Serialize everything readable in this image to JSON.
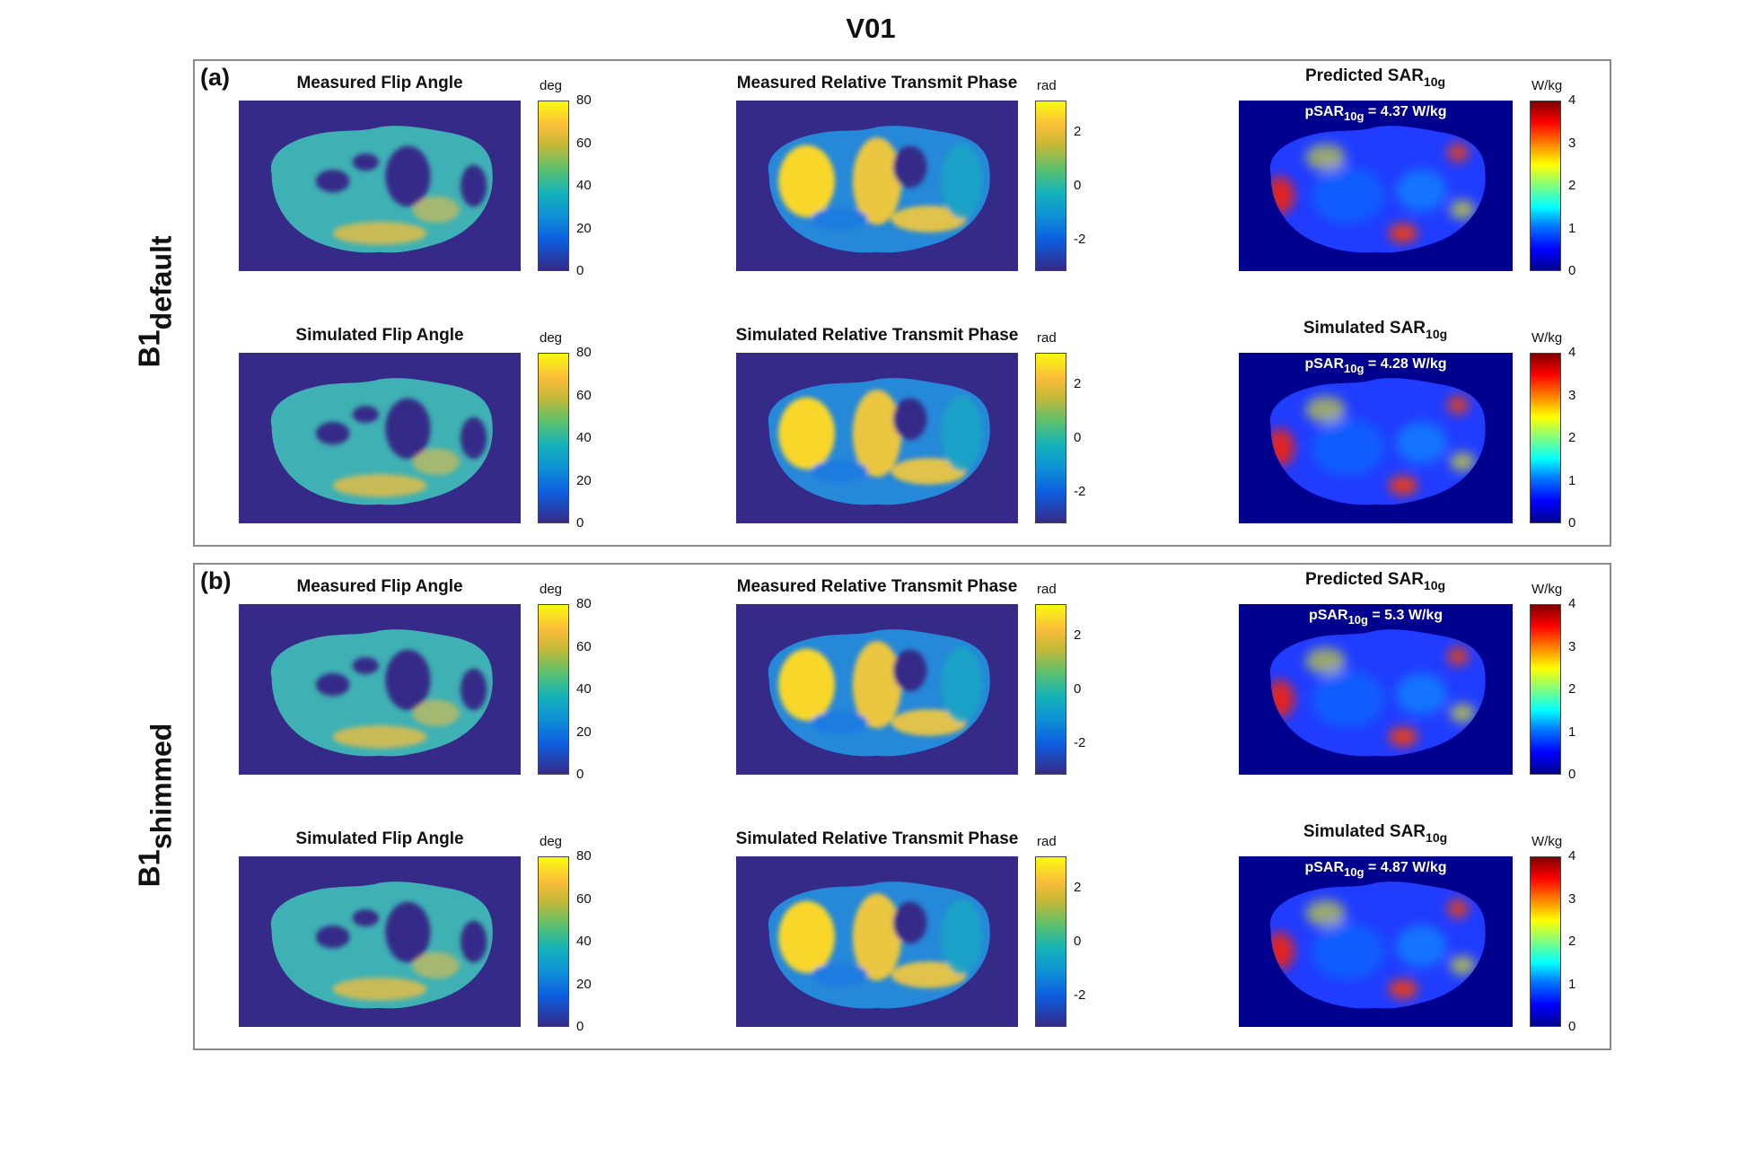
{
  "figure": {
    "title": "V01",
    "colormaps": {
      "parula": "linear-gradient(to top, #352a87 0%, #0d5ee0 18%, #0f8fd6 32%, #14b3b8 46%, #5dc06e 60%, #c5b838 74%, #fbbe3a 86%, #f9fb0e 100%)",
      "jet": "linear-gradient(to top, #00008f 0%, #0000ff 12.5%, #0080ff 27%, #00ffff 37.5%, #80ff80 50%, #ffff00 62.5%, #ff8000 75%, #ff0000 87.5%, #800000 100%)"
    },
    "map_background": {
      "parula": "#352a87",
      "jet": "#00008f"
    },
    "groups": [
      {
        "letter": "(a)",
        "row_label": {
          "main": "B1",
          "sub": "default"
        },
        "rows": [
          {
            "flip": {
              "title": "Measured Flip Angle",
              "unit": "deg",
              "ticks": [
                "80",
                "60",
                "40",
                "20",
                "0"
              ]
            },
            "phase": {
              "title": "Measured Relative Transmit Phase",
              "unit": "rad",
              "ticks": [
                "2",
                "0",
                "-2"
              ]
            },
            "sar": {
              "title_main": "Predicted SAR",
              "title_sub": "10g",
              "unit": "W/kg",
              "ticks": [
                "4",
                "3",
                "2",
                "1",
                "0"
              ],
              "annotation": {
                "prefix": "pSAR",
                "sub": "10g",
                "value": " = 4.37 W/kg"
              }
            }
          },
          {
            "flip": {
              "title": "Simulated Flip Angle",
              "unit": "deg",
              "ticks": [
                "80",
                "60",
                "40",
                "20",
                "0"
              ]
            },
            "phase": {
              "title": "Simulated Relative Transmit Phase",
              "unit": "rad",
              "ticks": [
                "2",
                "0",
                "-2"
              ]
            },
            "sar": {
              "title_main": "Simulated SAR",
              "title_sub": "10g",
              "unit": "W/kg",
              "ticks": [
                "4",
                "3",
                "2",
                "1",
                "0"
              ],
              "annotation": {
                "prefix": "pSAR",
                "sub": "10g",
                "value": " = 4.28 W/kg"
              }
            }
          }
        ]
      },
      {
        "letter": "(b)",
        "row_label": {
          "main": "B1",
          "sub": "shimmed"
        },
        "rows": [
          {
            "flip": {
              "title": "Measured  Flip Angle",
              "unit": "deg",
              "ticks": [
                "80",
                "60",
                "40",
                "20",
                "0"
              ]
            },
            "phase": {
              "title": "Measured Relative Transmit Phase",
              "unit": "rad",
              "ticks": [
                "2",
                "0",
                "-2"
              ]
            },
            "sar": {
              "title_main": "Predicted SAR",
              "title_sub": "10g",
              "unit": "W/kg",
              "ticks": [
                "4",
                "3",
                "2",
                "1",
                "0"
              ],
              "annotation": {
                "prefix": "pSAR",
                "sub": "10g",
                "value": " = 5.3 W/kg"
              }
            }
          },
          {
            "flip": {
              "title": "Simulated  Flip Angle",
              "unit": "deg",
              "ticks": [
                "80",
                "60",
                "40",
                "20",
                "0"
              ]
            },
            "phase": {
              "title": "Simulated Relative Transmit Phase",
              "unit": "rad",
              "ticks": [
                "2",
                "0",
                "-2"
              ]
            },
            "sar": {
              "title_main": "Simulated SAR",
              "title_sub": "10g",
              "unit": "W/kg",
              "ticks": [
                "4",
                "3",
                "2",
                "1",
                "0"
              ],
              "annotation": {
                "prefix": "pSAR",
                "sub": "10g",
                "value": " = 4.87 W/kg"
              }
            }
          }
        ]
      }
    ]
  }
}
